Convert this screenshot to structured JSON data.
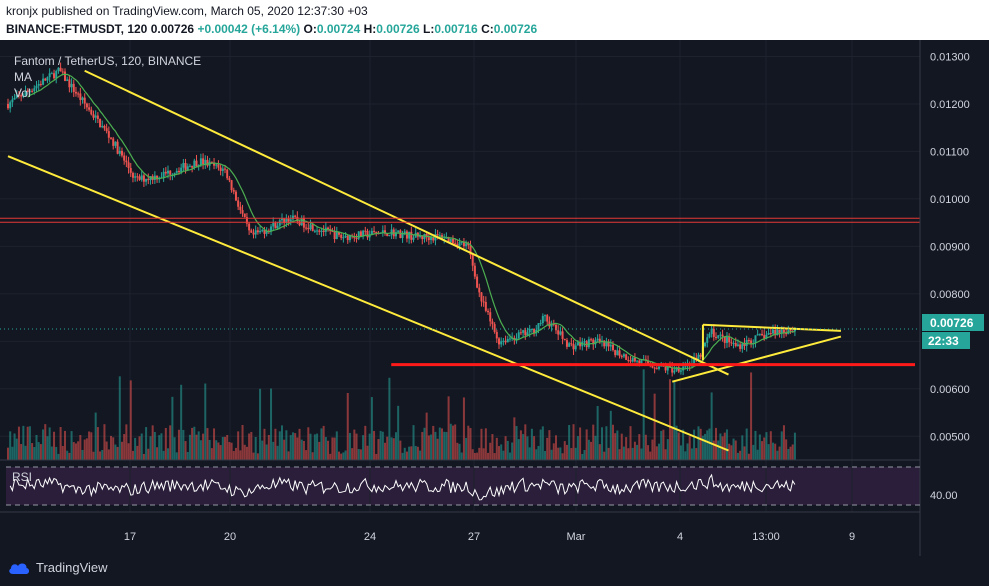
{
  "header": {
    "publish_line": "kronjx published on TradingView.com, March 05, 2020 12:37:30 +03",
    "symbol": "BINANCE:FTMUSDT, 120",
    "last": "0.00726",
    "change": "+0.00042 (+6.14%)",
    "o_label": "O:",
    "o": "0.00724",
    "h_label": "H:",
    "h": "0.00726",
    "l_label": "L:",
    "l": "0.00716",
    "c_label": "C:",
    "c": "0.00726"
  },
  "legend": {
    "title": "Fantom / TetherUS, 120, BINANCE",
    "ma": "MA",
    "vol": "Vol",
    "rsi": "RSI"
  },
  "price_axis": {
    "ticks": [
      "0.01300",
      "0.01200",
      "0.01100",
      "0.01000",
      "0.00900",
      "0.00800",
      "0.00700",
      "0.00600",
      "0.00500"
    ],
    "last_price_tag": "0.00726",
    "countdown_tag": "22:33"
  },
  "rsi_axis": {
    "tick": "40.00"
  },
  "time_axis": {
    "ticks": [
      "17",
      "20",
      "24",
      "27",
      "Mar",
      "4",
      "13:00",
      "9"
    ]
  },
  "footer": {
    "brand": "TradingView"
  },
  "colors": {
    "up": "#26a69a",
    "down": "#ef5350",
    "ma": "#4caf50",
    "trendline": "#ffeb3b",
    "resistance": "#e53935",
    "support": "#ff1a1a",
    "rsi_line": "#ffffff",
    "rsi_band": "#2a1e3a"
  },
  "chart_data": {
    "type": "candlestick",
    "timeframe": "120",
    "ylim": [
      0.0045,
      0.0132
    ],
    "rsi_band": [
      30,
      70
    ],
    "guide_points": [
      {
        "d": 0,
        "p": 0.012
      },
      {
        "d": 2,
        "p": 0.0127
      },
      {
        "d": 3,
        "p": 0.012
      },
      {
        "d": 4,
        "p": 0.0113
      },
      {
        "d": 5,
        "p": 0.0104
      },
      {
        "d": 6,
        "p": 0.0105
      },
      {
        "d": 7.5,
        "p": 0.0108
      },
      {
        "d": 8.5,
        "p": 0.0106
      },
      {
        "d": 9.5,
        "p": 0.0092
      },
      {
        "d": 11,
        "p": 0.0096
      },
      {
        "d": 13,
        "p": 0.0092
      },
      {
        "d": 15,
        "p": 0.0093
      },
      {
        "d": 16,
        "p": 0.0092
      },
      {
        "d": 17,
        "p": 0.0092
      },
      {
        "d": 18,
        "p": 0.009
      },
      {
        "d": 18.5,
        "p": 0.0079
      },
      {
        "d": 19.2,
        "p": 0.007
      },
      {
        "d": 20.5,
        "p": 0.0072
      },
      {
        "d": 21,
        "p": 0.0075
      },
      {
        "d": 22,
        "p": 0.0069
      },
      {
        "d": 23,
        "p": 0.007
      },
      {
        "d": 24.5,
        "p": 0.0066
      },
      {
        "d": 26,
        "p": 0.0064
      },
      {
        "d": 27,
        "p": 0.0066
      },
      {
        "d": 27.5,
        "p": 0.0072
      },
      {
        "d": 28.5,
        "p": 0.0069
      },
      {
        "d": 30,
        "p": 0.0072
      },
      {
        "d": 30.8,
        "p": 0.00726
      }
    ],
    "trendlines": [
      {
        "name": "channel-upper",
        "from": {
          "d": 3,
          "p": 0.0127
        },
        "to": {
          "d": 28.2,
          "p": 0.0063
        }
      },
      {
        "name": "channel-lower",
        "from": {
          "d": 0,
          "p": 0.0109
        },
        "to": {
          "d": 28.2,
          "p": 0.0047
        }
      },
      {
        "name": "triangle-top",
        "from": {
          "d": 27.2,
          "p": 0.00735
        },
        "to": {
          "d": 32.6,
          "p": 0.00722
        }
      },
      {
        "name": "triangle-bottom",
        "from": {
          "d": 26,
          "p": 0.00615
        },
        "to": {
          "d": 32.6,
          "p": 0.0071
        }
      },
      {
        "name": "triangle-left",
        "from": {
          "d": 27.2,
          "p": 0.00735
        },
        "to": {
          "d": 27.2,
          "p": 0.0066
        }
      }
    ],
    "horizontal_levels": [
      {
        "name": "resistance",
        "price": 0.00955
      },
      {
        "name": "support",
        "price": 0.00651,
        "from_d": 15,
        "to_d": 35.5
      }
    ]
  }
}
